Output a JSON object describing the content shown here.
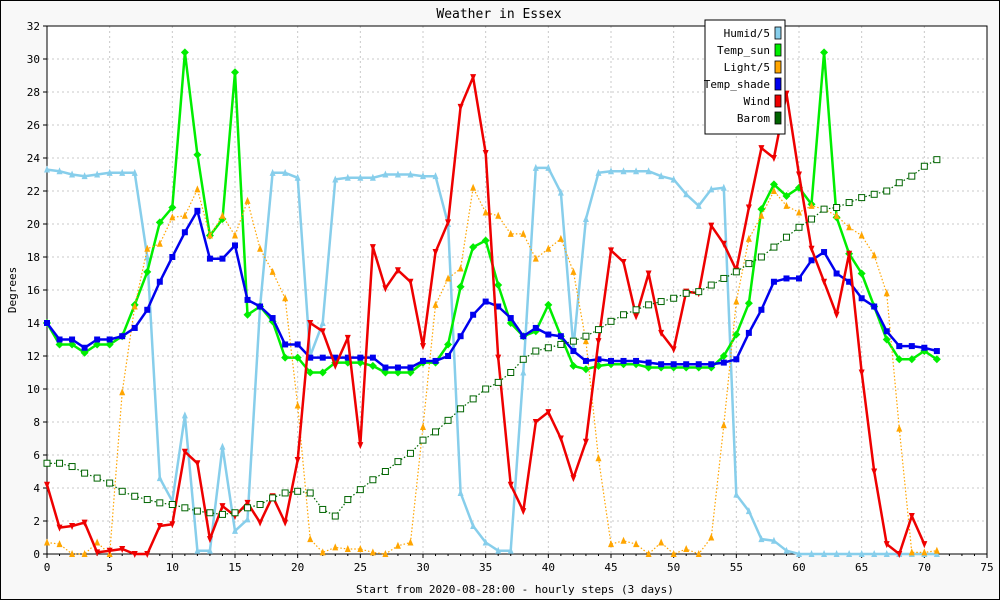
{
  "chart_data": {
    "type": "line",
    "title": "Weather in Essex",
    "xlabel": "Start from 2020-08-28:00 - hourly steps (3 days)",
    "ylabel": "Degrees",
    "xlim": [
      0,
      75
    ],
    "ylim": [
      0,
      32
    ],
    "xticks": [
      0,
      5,
      10,
      15,
      20,
      25,
      30,
      35,
      40,
      45,
      50,
      55,
      60,
      65,
      70,
      75
    ],
    "yticks": [
      0,
      2,
      4,
      6,
      8,
      10,
      12,
      14,
      16,
      18,
      20,
      22,
      24,
      26,
      28,
      30,
      32
    ],
    "grid": true,
    "legend_position": "top-right",
    "series": [
      {
        "name": "Humid/5",
        "color": "#87ceeb",
        "style": "solid",
        "marker": "triangle-up",
        "values": [
          23.3,
          23.2,
          23.0,
          22.9,
          23.0,
          23.1,
          23.1,
          23.1,
          18.0,
          4.6,
          3.2,
          8.4,
          0.2,
          0.2,
          6.5,
          1.4,
          2.1,
          15.0,
          23.1,
          23.1,
          22.8,
          12.0,
          14.0,
          22.7,
          22.8,
          22.8,
          22.8,
          23.0,
          23.0,
          23.0,
          22.9,
          22.9,
          20.0,
          3.7,
          1.7,
          0.7,
          0.2,
          0.2,
          11.0,
          23.4,
          23.4,
          21.9,
          12.5,
          20.3,
          23.1,
          23.2,
          23.2,
          23.2,
          23.2,
          22.9,
          22.7,
          21.8,
          21.1,
          22.1,
          22.2,
          3.6,
          2.6,
          0.9,
          0.8,
          0.2,
          0,
          0,
          0,
          0,
          0,
          0,
          0,
          0,
          0,
          0,
          0,
          0
        ]
      },
      {
        "name": "Temp_sun",
        "color": "#00ee00",
        "style": "solid",
        "marker": "diamond",
        "values": [
          14.0,
          12.7,
          12.7,
          12.2,
          12.7,
          12.7,
          13.2,
          15.1,
          17.1,
          20.1,
          21.0,
          30.4,
          24.2,
          19.3,
          20.3,
          29.2,
          14.5,
          15.0,
          14.1,
          11.9,
          11.9,
          11.0,
          11.0,
          11.6,
          11.6,
          11.6,
          11.4,
          11.0,
          11.0,
          11.0,
          11.6,
          11.6,
          12.7,
          16.2,
          18.6,
          19.0,
          16.3,
          14.0,
          13.2,
          13.5,
          15.1,
          13.2,
          11.4,
          11.2,
          11.4,
          11.5,
          11.5,
          11.5,
          11.3,
          11.3,
          11.3,
          11.3,
          11.3,
          11.3,
          12.0,
          13.3,
          15.2,
          20.9,
          22.4,
          21.7,
          22.2,
          21.2,
          30.4,
          20.4,
          18.2,
          17.0,
          15.0,
          13.0,
          11.8,
          11.8,
          12.3,
          11.8
        ]
      },
      {
        "name": "Light/5",
        "color": "#ffa500",
        "style": "dotted",
        "marker": "triangle-up",
        "values": [
          0.7,
          0.6,
          0,
          0,
          0.7,
          0,
          9.8,
          15.0,
          18.5,
          18.8,
          20.4,
          20.5,
          22.1,
          19.3,
          20.5,
          19.3,
          21.4,
          18.5,
          17.1,
          15.5,
          9.0,
          0.9,
          0.1,
          0.4,
          0.3,
          0.3,
          0.1,
          0,
          0.5,
          0.7,
          7.7,
          15.1,
          16.7,
          17.3,
          22.2,
          20.7,
          20.5,
          19.4,
          19.4,
          17.9,
          18.5,
          19.1,
          17.1,
          12.9,
          5.8,
          0.6,
          0.8,
          0.6,
          0,
          0.7,
          0,
          0.3,
          0,
          1.0,
          7.8,
          15.3,
          19.1,
          20.5,
          22.0,
          21.1,
          20.7,
          21.1,
          20.9,
          20.5,
          19.8,
          19.3,
          18.1,
          15.8,
          7.6,
          0.1,
          0.1,
          0.2
        ]
      },
      {
        "name": "Temp_shade",
        "color": "#0000ee",
        "style": "solid",
        "marker": "square",
        "values": [
          14.0,
          13.0,
          13.0,
          12.5,
          13.0,
          13.0,
          13.2,
          13.7,
          14.8,
          16.5,
          18.0,
          19.5,
          20.8,
          17.9,
          17.9,
          18.7,
          15.4,
          15.0,
          14.3,
          12.7,
          12.7,
          11.9,
          11.9,
          11.9,
          11.9,
          11.9,
          11.9,
          11.3,
          11.3,
          11.3,
          11.7,
          11.7,
          12.0,
          13.2,
          14.5,
          15.3,
          15.0,
          14.3,
          13.2,
          13.7,
          13.3,
          13.2,
          12.3,
          11.7,
          11.8,
          11.7,
          11.7,
          11.7,
          11.6,
          11.5,
          11.5,
          11.5,
          11.5,
          11.5,
          11.6,
          11.8,
          13.4,
          14.8,
          16.5,
          16.7,
          16.7,
          17.8,
          18.3,
          17.0,
          16.5,
          15.5,
          15.0,
          13.5,
          12.6,
          12.6,
          12.5,
          12.3
        ]
      },
      {
        "name": "Wind",
        "color": "#ee0000",
        "style": "solid",
        "marker": "triangle-down",
        "values": [
          4.2,
          1.6,
          1.7,
          1.9,
          0.1,
          0.2,
          0.3,
          0,
          0,
          1.7,
          1.8,
          6.2,
          5.5,
          0.9,
          2.9,
          2.3,
          3.1,
          1.9,
          3.5,
          1.9,
          5.7,
          14.0,
          13.5,
          11.4,
          13.1,
          6.6,
          18.6,
          16.1,
          17.2,
          16.5,
          12.6,
          18.3,
          20.1,
          27.1,
          28.9,
          24.3,
          11.9,
          4.2,
          2.6,
          8.0,
          8.6,
          7.0,
          4.6,
          6.8,
          12.9,
          18.4,
          17.7,
          14.4,
          17.0,
          13.4,
          12.4,
          15.9,
          15.8,
          19.9,
          18.8,
          17.2,
          21.0,
          24.6,
          24.0,
          27.9,
          23.0,
          18.5,
          16.5,
          14.5,
          18.2,
          11.0,
          5.0,
          0.6,
          0,
          2.3,
          0.6,
          null
        ]
      },
      {
        "name": "Barom",
        "color": "#006400",
        "style": "dotted",
        "marker": "open-square",
        "values": [
          5.5,
          5.5,
          5.3,
          4.9,
          4.6,
          4.3,
          3.8,
          3.5,
          3.3,
          3.1,
          3.0,
          2.8,
          2.6,
          2.5,
          2.4,
          2.5,
          2.8,
          3.0,
          3.4,
          3.7,
          3.8,
          3.7,
          2.7,
          2.3,
          3.3,
          3.9,
          4.5,
          5.0,
          5.6,
          6.1,
          6.9,
          7.4,
          8.1,
          8.8,
          9.4,
          10.0,
          10.4,
          11.0,
          11.8,
          12.3,
          12.5,
          12.7,
          12.9,
          13.2,
          13.6,
          14.1,
          14.5,
          14.8,
          15.1,
          15.3,
          15.5,
          15.8,
          15.9,
          16.3,
          16.7,
          17.1,
          17.6,
          18.0,
          18.6,
          19.2,
          19.8,
          20.3,
          20.9,
          21.0,
          21.3,
          21.6,
          21.8,
          22.0,
          22.5,
          22.9,
          23.5,
          23.9
        ]
      }
    ]
  }
}
